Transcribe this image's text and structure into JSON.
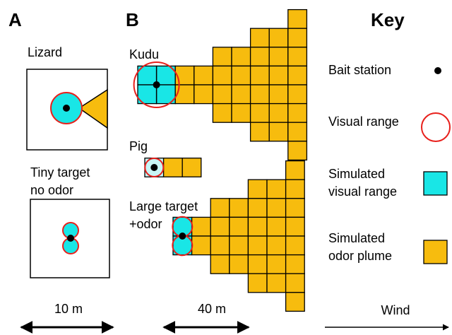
{
  "panel_a": {
    "label": "A",
    "items": [
      {
        "lines": [
          "Lizard"
        ]
      },
      {
        "lines": [
          "Tiny target",
          "no odor"
        ]
      }
    ],
    "scale": "10 m"
  },
  "panel_b": {
    "label": "B",
    "items": [
      {
        "lines": [
          "Kudu"
        ]
      },
      {
        "lines": [
          "Pig"
        ]
      },
      {
        "lines": [
          "Large target",
          "+odor"
        ]
      }
    ],
    "scale": "40 m"
  },
  "key": {
    "title": "Key",
    "entries": [
      {
        "lines": [
          "Bait station"
        ]
      },
      {
        "lines": [
          "Visual range"
        ]
      },
      {
        "lines": [
          "Simulated",
          "visual range"
        ]
      },
      {
        "lines": [
          "Simulated",
          "odor plume"
        ]
      }
    ],
    "direction": "Wind"
  }
}
